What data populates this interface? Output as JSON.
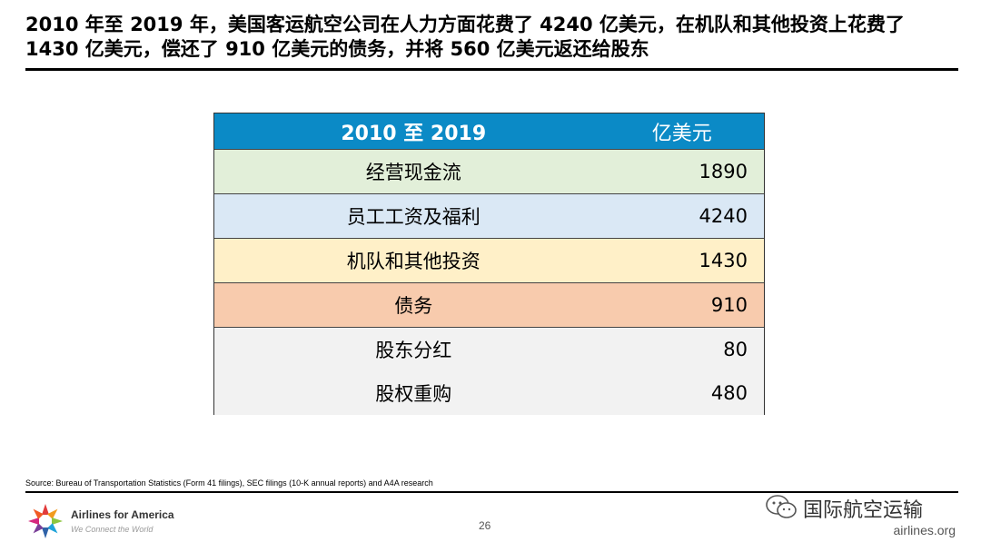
{
  "title": "2010 年至 2019 年，美国客运航空公司在人力方面花费了 4240 亿美元，在机队和其他投资上花费了 1430 亿美元，偿还了 910 亿美元的债务，并将 560 亿美元返还给股东",
  "table": {
    "header": {
      "period": "2010 至 2019",
      "unit": "亿美元"
    },
    "rows": [
      {
        "label": "经营现金流",
        "value": "1890",
        "color": "#e2efd9"
      },
      {
        "label": "员工工资及福利",
        "value": "4240",
        "color": "#dae8f5"
      },
      {
        "label": "机队和其他投资",
        "value": "1430",
        "color": "#fff0c8"
      },
      {
        "label": "债务",
        "value": "910",
        "color": "#f8cbad"
      },
      {
        "label": "股东分红",
        "value": "80",
        "color": "#f2f2f2"
      },
      {
        "label": "股权重购",
        "value": "480",
        "color": "#f2f2f2"
      }
    ],
    "header_color": "#0b8ac6"
  },
  "footer": {
    "source": "Source: Bureau of Transportation Statistics (Form 41 filings), SEC filings (10-K annual reports) and A4A research",
    "logo_name": "Airlines for America",
    "logo_tagline": "We Connect the World",
    "page_number": "26",
    "watermark": "国际航空运输",
    "site": "airlines.org"
  }
}
